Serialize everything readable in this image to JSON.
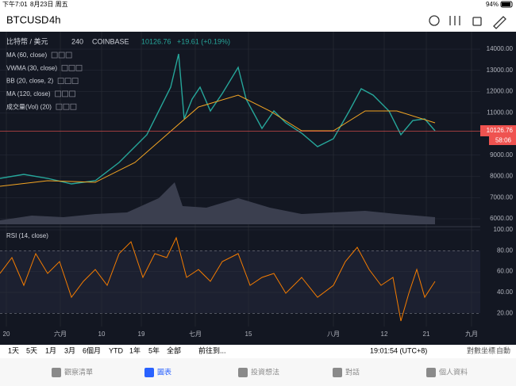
{
  "status_bar": {
    "time": "下午7:01",
    "date": "8月23日 周五",
    "battery": "94%"
  },
  "toolbar": {
    "symbol": "BTCUSD",
    "interval": "4h"
  },
  "legend": {
    "pair": "比特幣 / 美元",
    "interval": "240",
    "exchange": "COINBASE",
    "price": "10126.76",
    "change": "+19.61 (+0.19%)"
  },
  "indicators": [
    "MA (60, close)",
    "VWMA (30, close)",
    "BB (20, close, 2)",
    "MA (120, close)",
    "成交量(Vol) (20)"
  ],
  "rsi_title": "RSI (14, close)",
  "price_axis": [
    {
      "value": 14000,
      "label": "14000.00"
    },
    {
      "value": 13000,
      "label": "13000.00"
    },
    {
      "value": 12000,
      "label": "12000.00"
    },
    {
      "value": 11000,
      "label": "11000.00"
    },
    {
      "value": 9000,
      "label": "9000.00"
    },
    {
      "value": 8000,
      "label": "8000.00"
    },
    {
      "value": 7000,
      "label": "7000.00"
    },
    {
      "value": 6000,
      "label": "6000.00"
    }
  ],
  "last_price": {
    "value": 10126.76,
    "label": "10126.76",
    "countdown": "58:06"
  },
  "rsi_axis": [
    {
      "value": 100,
      "label": "100.00"
    },
    {
      "value": 80,
      "label": "80.00"
    },
    {
      "value": 60,
      "label": "60.00"
    },
    {
      "value": 40,
      "label": "40.00"
    },
    {
      "value": 20,
      "label": "20.00"
    }
  ],
  "time_axis": [
    "20",
    "六月",
    "10",
    "19",
    "七月",
    "15",
    "八月",
    "12",
    "21",
    "九月"
  ],
  "bottom_bar": {
    "ranges": [
      "1天",
      "5天",
      "1月",
      "3月",
      "6個月",
      "YTD",
      "1年",
      "5年",
      "全部"
    ],
    "goto": "前往到...",
    "clock": "19:01:54 (UTC+8)",
    "log": "對數坐標",
    "auto": "自動"
  },
  "tabs": [
    "觀察清單",
    "圖表",
    "投資想法",
    "對話",
    "個人資料"
  ]
}
